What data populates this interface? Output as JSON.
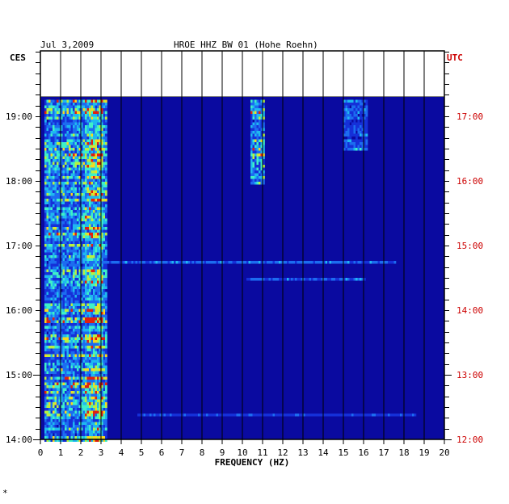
{
  "chart_data": {
    "type": "heatmap",
    "date": "Jul 3,2009",
    "title": "HROE HHZ BW 01 (Hohe Roehn)",
    "left_tz": "CES",
    "right_tz": "UTC",
    "xlabel": "FREQUENCY (HZ)",
    "xlim": [
      0,
      20
    ],
    "x_ticks": [
      "0",
      "1",
      "2",
      "3",
      "4",
      "5",
      "6",
      "7",
      "8",
      "9",
      "10",
      "11",
      "12",
      "13",
      "14",
      "15",
      "16",
      "17",
      "18",
      "19",
      "20"
    ],
    "left_ticks": [
      "19:00",
      "18:00",
      "17:00",
      "16:00",
      "15:00",
      "14:00"
    ],
    "right_ticks": [
      "17:00",
      "16:00",
      "15:00",
      "14:00",
      "13:00",
      "12:00"
    ],
    "time_range_utc": [
      "12:00",
      "17:15"
    ],
    "grid": true,
    "colors": {
      "background": "#0a0aa0",
      "right_axis": "#cc0000"
    },
    "features": [
      {
        "band_hz": [
          0.2,
          3.2
        ],
        "time_utc": [
          "12:00",
          "17:15"
        ],
        "intensity": "high"
      },
      {
        "band_hz": [
          2.2,
          3.0
        ],
        "time_utc": [
          "12:00",
          "17:15"
        ],
        "intensity": "very high"
      },
      {
        "band_hz": [
          10.4,
          11.0
        ],
        "time_utc": [
          "16:00",
          "17:15"
        ],
        "intensity": "high"
      },
      {
        "band_hz": [
          15.0,
          16.2
        ],
        "time_utc": [
          "16:30",
          "17:15"
        ],
        "intensity": "medium"
      },
      {
        "band_hz": [
          0.5,
          17.5
        ],
        "time_utc": [
          "14:45",
          "14:45"
        ],
        "intensity": "medium"
      },
      {
        "band_hz": [
          10.2,
          16.0
        ],
        "time_utc": [
          "14:30",
          "14:30"
        ],
        "intensity": "medium"
      },
      {
        "band_hz": [
          4.8,
          18.5
        ],
        "time_utc": [
          "12:25",
          "12:25"
        ],
        "intensity": "low"
      }
    ]
  },
  "footer_mark": "*"
}
